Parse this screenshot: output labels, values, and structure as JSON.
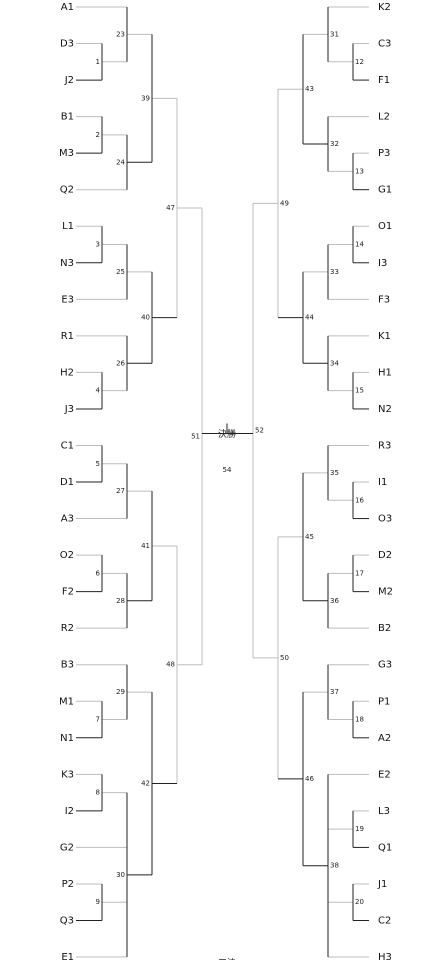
{
  "header": {
    "final_label": "決勝",
    "footer_label": "三決"
  },
  "left": {
    "teams": [
      "A1",
      "D3",
      "J2",
      "B1",
      "M3",
      "Q2",
      "L1",
      "N3",
      "E3",
      "R1",
      "H2",
      "J3",
      "C1",
      "D1",
      "A3",
      "O2",
      "F2",
      "R2",
      "B3",
      "M1",
      "N1",
      "K3",
      "I2",
      "G2",
      "P2",
      "Q3",
      "E1"
    ],
    "r1": [
      "1",
      "2",
      "3",
      "4",
      "5",
      "6",
      "7",
      "8",
      "9",
      "10",
      "11"
    ],
    "r2": [
      "23",
      "24",
      "25",
      "26",
      "27",
      "28",
      "29",
      "30"
    ],
    "r3": [
      "39",
      "40",
      "41",
      "42"
    ],
    "r4": [
      "47",
      "48"
    ],
    "semi": "51"
  },
  "right": {
    "teams": [
      "K2",
      "C3",
      "F1",
      "L2",
      "P3",
      "G1",
      "O1",
      "I3",
      "F3",
      "K1",
      "H1",
      "N2",
      "R3",
      "I1",
      "O3",
      "D2",
      "M2",
      "B2",
      "G3",
      "P1",
      "A2",
      "E2",
      "L3",
      "Q1",
      "J1",
      "C2",
      "H3"
    ],
    "r1": [
      "12",
      "13",
      "14",
      "15",
      "16",
      "17",
      "18",
      "19",
      "20",
      "21",
      "22"
    ],
    "r2": [
      "31",
      "32",
      "33",
      "34",
      "35",
      "36",
      "37",
      "38"
    ],
    "r3": [
      "43",
      "44",
      "45",
      "46"
    ],
    "r4": [
      "49",
      "50"
    ],
    "semi": "52"
  },
  "final_number": "54",
  "colors": {
    "winner_line": "#222222",
    "loser_line": "#bdbdbd"
  }
}
